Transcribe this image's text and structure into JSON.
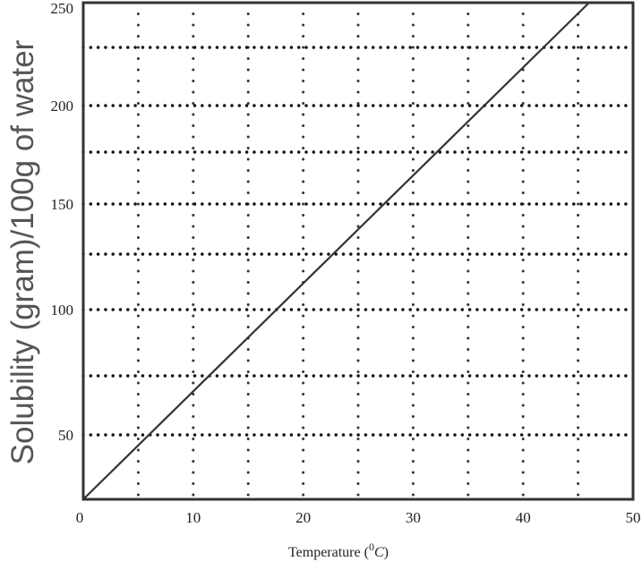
{
  "chart_data": {
    "type": "line",
    "title": "",
    "xlabel": "Temperature (",
    "xlabel_unit": "0",
    "xlabel_unit_letter": "C",
    "xlabel_close": ")",
    "ylabel": "Solubility (gram)/100g of water",
    "xlim": [
      0,
      50
    ],
    "xticks": [
      0,
      10,
      20,
      30,
      40,
      50
    ],
    "xtick_labels": [
      "0",
      "10",
      "20",
      "30",
      "40",
      "50"
    ],
    "yticks": [
      50,
      100,
      150,
      200,
      250
    ],
    "ytick_labels": [
      "50",
      "100",
      "150",
      "200",
      "250"
    ],
    "grid": true,
    "grid_style": "dotted",
    "series": [
      {
        "x": [
          0,
          46
        ],
        "y": [
          25,
          250
        ],
        "color": "#333333"
      }
    ]
  }
}
